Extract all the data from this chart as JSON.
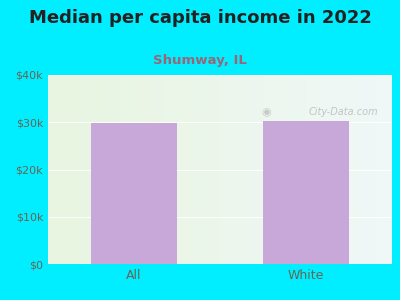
{
  "title": "Median per capita income in 2022",
  "subtitle": "Shumway, IL",
  "categories": [
    "All",
    "White"
  ],
  "values": [
    29800,
    30200
  ],
  "bar_color": "#c8a8d8",
  "title_fontsize": 13,
  "subtitle_fontsize": 9.5,
  "subtitle_color": "#996677",
  "tick_label_fontsize": 8,
  "outer_bg_color": "#00eeff",
  "plot_bg_gradient_left": "#e8f5e0",
  "plot_bg_gradient_right": "#f0f8f8",
  "ylim": [
    0,
    40000
  ],
  "yticks": [
    0,
    10000,
    20000,
    30000,
    40000
  ],
  "ytick_labels": [
    "$0",
    "$10k",
    "$20k",
    "$30k",
    "$40k"
  ],
  "watermark": "City-Data.com",
  "title_color": "#222222",
  "tick_color": "#666655"
}
